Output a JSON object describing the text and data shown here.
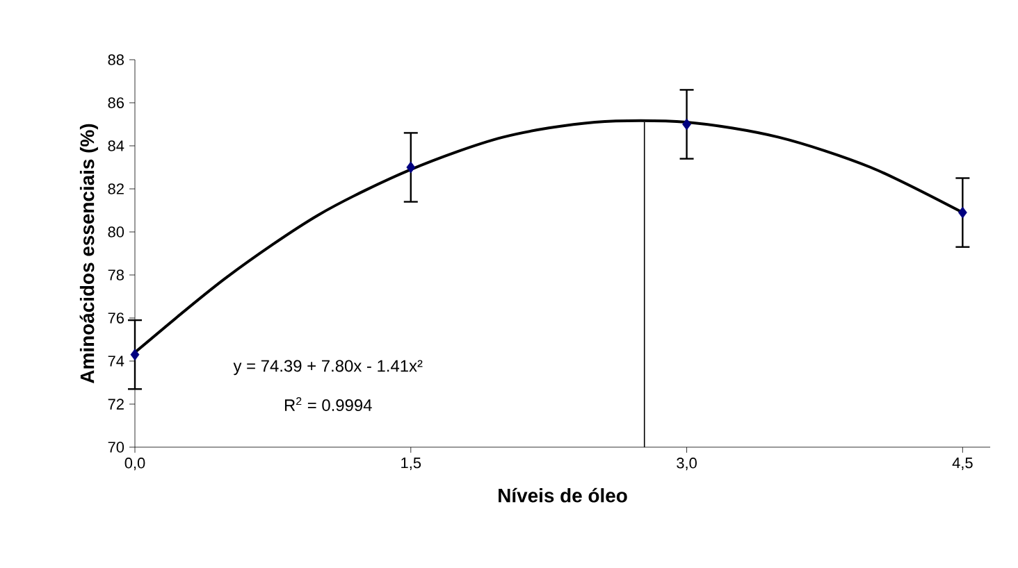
{
  "chart_data": {
    "type": "scatter",
    "xlabel": "Níveis de óleo",
    "ylabel": "Aminoácidos essenciais (%)",
    "x": [
      0,
      1.5,
      3.0,
      4.5
    ],
    "series": [
      {
        "color": "#000080",
        "marker": "diamond",
        "values": [
          74.3,
          83.0,
          85.0,
          80.9
        ],
        "errors": [
          1.6,
          1.6,
          1.6,
          1.6
        ]
      },
      {
        "type": "line",
        "color": "#000000",
        "line_style": "solid",
        "marker": "none",
        "x": [
          0,
          0.5,
          1,
          1.5,
          2,
          2.5,
          3,
          3.5,
          4,
          4.5
        ],
        "values": [
          74.4,
          77.9,
          80.8,
          82.9,
          84.4,
          85.1,
          85.1,
          84.4,
          83.0,
          80.9
        ]
      },
      {
        "type": "line",
        "color": "#000000",
        "line_style": "solid",
        "marker": "none",
        "x": [
          2.77,
          2.77
        ],
        "values": [
          70,
          85.1
        ]
      }
    ],
    "xlim": [
      0,
      4.65
    ],
    "ylim": [
      70,
      88
    ],
    "xticks": [
      {
        "value": 0,
        "label": "0,0"
      },
      {
        "value": 1.5,
        "label": "1,5"
      },
      {
        "value": 3.0,
        "label": "3,0"
      },
      {
        "value": 4.5,
        "label": "4,5"
      }
    ],
    "yticks": [
      70,
      72,
      74,
      76,
      78,
      80,
      82,
      84,
      86,
      88
    ],
    "grid": false,
    "annotations": [
      "y = 74.39 + 7.80x - 1.41x²",
      "R$^{2}$ = 0.9994"
    ]
  }
}
